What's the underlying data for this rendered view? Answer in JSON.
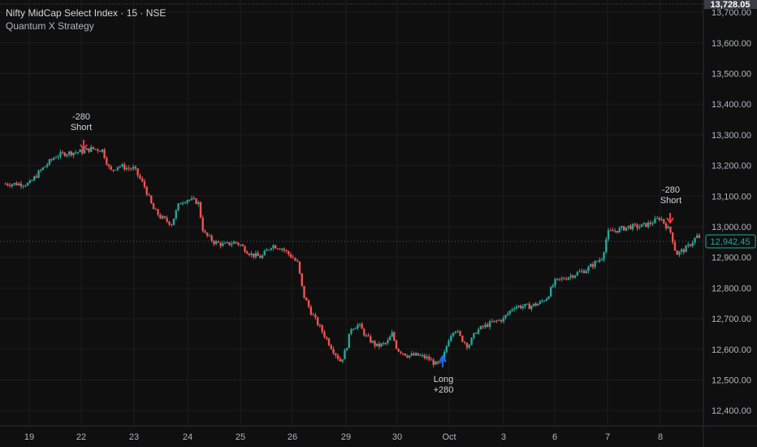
{
  "header": {
    "title": "Nifty MidCap Select Index · 15 · NSE",
    "indicator": "Quantum X Strategy"
  },
  "price_scale": {
    "top_label": "13,728.05",
    "last_price": "12,942.45",
    "labels": [
      "13,700.00",
      "13,600.00",
      "13,500.00",
      "13,400.00",
      "13,300.00",
      "13,200.00",
      "13,100.00",
      "13,000.00",
      "12,900.00",
      "12,800.00",
      "12,700.00",
      "12,600.00",
      "12,500.00",
      "12,400.00"
    ]
  },
  "time_axis": {
    "labels": [
      "19",
      "22",
      "23",
      "24",
      "25",
      "26",
      "29",
      "30",
      "Oct",
      "3",
      "6",
      "7",
      "8"
    ]
  },
  "signals": [
    {
      "qty": "-280",
      "type": "Short"
    },
    {
      "qty": "+280",
      "type": "Long"
    },
    {
      "qty": "-280",
      "type": "Short"
    }
  ],
  "colors": {
    "background": "#0f0f0f",
    "grid": "#1c1c1c",
    "up": "#26a69a",
    "down": "#ef5350",
    "short_arrow": "#f23645",
    "long_arrow": "#2962ff",
    "axis_text": "#b2b5be"
  },
  "chart_data": {
    "type": "candlestick",
    "ylim": [
      12350,
      13740
    ],
    "x_sessions": [
      "19",
      "22",
      "23",
      "24",
      "25",
      "26",
      "29",
      "30",
      "Oct",
      "3",
      "6",
      "7",
      "8"
    ],
    "path": [
      [
        0.0,
        13140
      ],
      [
        0.2,
        13180
      ],
      [
        0.5,
        13230
      ],
      [
        0.7,
        13240
      ],
      [
        1.0,
        13245
      ],
      [
        1.2,
        13255
      ],
      [
        1.4,
        13250
      ],
      [
        1.55,
        13180
      ],
      [
        1.7,
        13200
      ],
      [
        1.9,
        13190
      ],
      [
        2.0,
        13190
      ],
      [
        2.2,
        13130
      ],
      [
        2.35,
        13060
      ],
      [
        2.5,
        13030
      ],
      [
        2.7,
        13010
      ],
      [
        2.85,
        13080
      ],
      [
        3.0,
        13090
      ],
      [
        3.2,
        13080
      ],
      [
        3.3,
        12980
      ],
      [
        3.5,
        12950
      ],
      [
        3.7,
        12940
      ],
      [
        3.9,
        12950
      ],
      [
        4.0,
        12940
      ],
      [
        4.2,
        12910
      ],
      [
        4.4,
        12900
      ],
      [
        4.6,
        12940
      ],
      [
        4.8,
        12930
      ],
      [
        5.0,
        12900
      ],
      [
        5.1,
        12880
      ],
      [
        5.2,
        12780
      ],
      [
        5.35,
        12720
      ],
      [
        5.55,
        12660
      ],
      [
        5.75,
        12600
      ],
      [
        5.9,
        12560
      ],
      [
        6.0,
        12600
      ],
      [
        6.1,
        12670
      ],
      [
        6.25,
        12680
      ],
      [
        6.4,
        12640
      ],
      [
        6.6,
        12610
      ],
      [
        6.8,
        12620
      ],
      [
        6.9,
        12650
      ],
      [
        7.0,
        12600
      ],
      [
        7.2,
        12580
      ],
      [
        7.4,
        12580
      ],
      [
        7.6,
        12570
      ],
      [
        7.75,
        12550
      ],
      [
        7.85,
        12550
      ],
      [
        8.0,
        12640
      ],
      [
        8.1,
        12670
      ],
      [
        8.2,
        12640
      ],
      [
        8.35,
        12610
      ],
      [
        8.5,
        12660
      ],
      [
        8.7,
        12680
      ],
      [
        9.0,
        12700
      ],
      [
        9.2,
        12740
      ],
      [
        9.5,
        12740
      ],
      [
        9.7,
        12750
      ],
      [
        9.85,
        12770
      ],
      [
        10.0,
        12820
      ],
      [
        10.3,
        12840
      ],
      [
        10.6,
        12860
      ],
      [
        10.9,
        12900
      ],
      [
        11.0,
        12980
      ],
      [
        11.2,
        12990
      ],
      [
        11.4,
        13000
      ],
      [
        11.6,
        13000
      ],
      [
        11.8,
        13010
      ],
      [
        12.0,
        13030
      ],
      [
        12.2,
        12980
      ],
      [
        12.3,
        12910
      ],
      [
        12.5,
        12930
      ],
      [
        12.7,
        12970
      ],
      [
        12.8,
        12940
      ]
    ]
  }
}
